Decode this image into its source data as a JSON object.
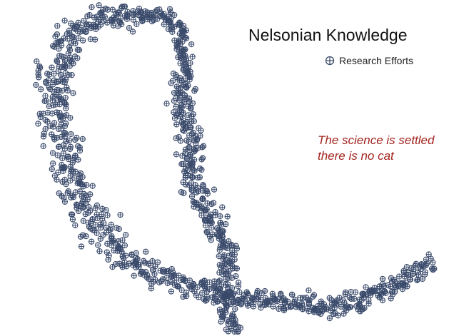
{
  "chart_data": {
    "type": "scatter",
    "title": "Nelsonian Knowledge",
    "legend": {
      "placement": "top-right",
      "entries": [
        "Research Efforts"
      ]
    },
    "series": [
      {
        "name": "Research Efforts",
        "points": []
      }
    ],
    "annotation": {
      "lines": [
        "The science is settled",
        "there is no cat"
      ],
      "color": "#a3241e"
    },
    "marker": {
      "shape": "circle-with-cross",
      "color": "#3a4a6b"
    },
    "grid": false,
    "axes_visible": false
  }
}
